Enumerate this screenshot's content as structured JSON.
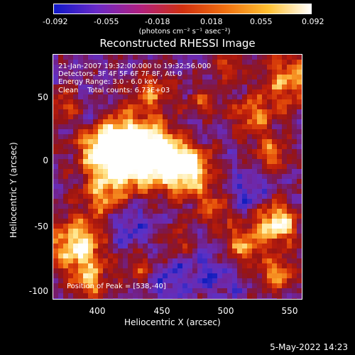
{
  "colorbar": {
    "ticks": [
      "-0.092",
      "-0.055",
      "-0.018",
      "0.018",
      "0.055",
      "0.092"
    ],
    "units": "(photons cm⁻² s⁻¹ asec⁻²)",
    "colors": [
      "#1018c8",
      "#6a2ac8",
      "#b02080",
      "#d03010",
      "#f07010",
      "#ffc030",
      "#ffffff"
    ]
  },
  "title": "Reconstructed RHESSI Image",
  "info": {
    "line1": "21-Jan-2007 19:32:00.000 to 19:32:56.000",
    "line2": "Detectors: 3F 4F 5F 6F 7F 8F, Att 0",
    "line3": "Energy Range: 3.0 - 6.0 keV",
    "line4": "Clean    Total counts: 6.73E+03",
    "peak": "Position of Peak = [538,-40]"
  },
  "axes": {
    "xlabel": "Heliocentric X (arcsec)",
    "ylabel": "Heliocentric Y (arcsec)",
    "xticks": [
      "400",
      "450",
      "500",
      "550"
    ],
    "yticks": [
      "50",
      "0",
      "-50",
      "-100"
    ]
  },
  "date_stamp": "5-May-2022 14:23"
}
